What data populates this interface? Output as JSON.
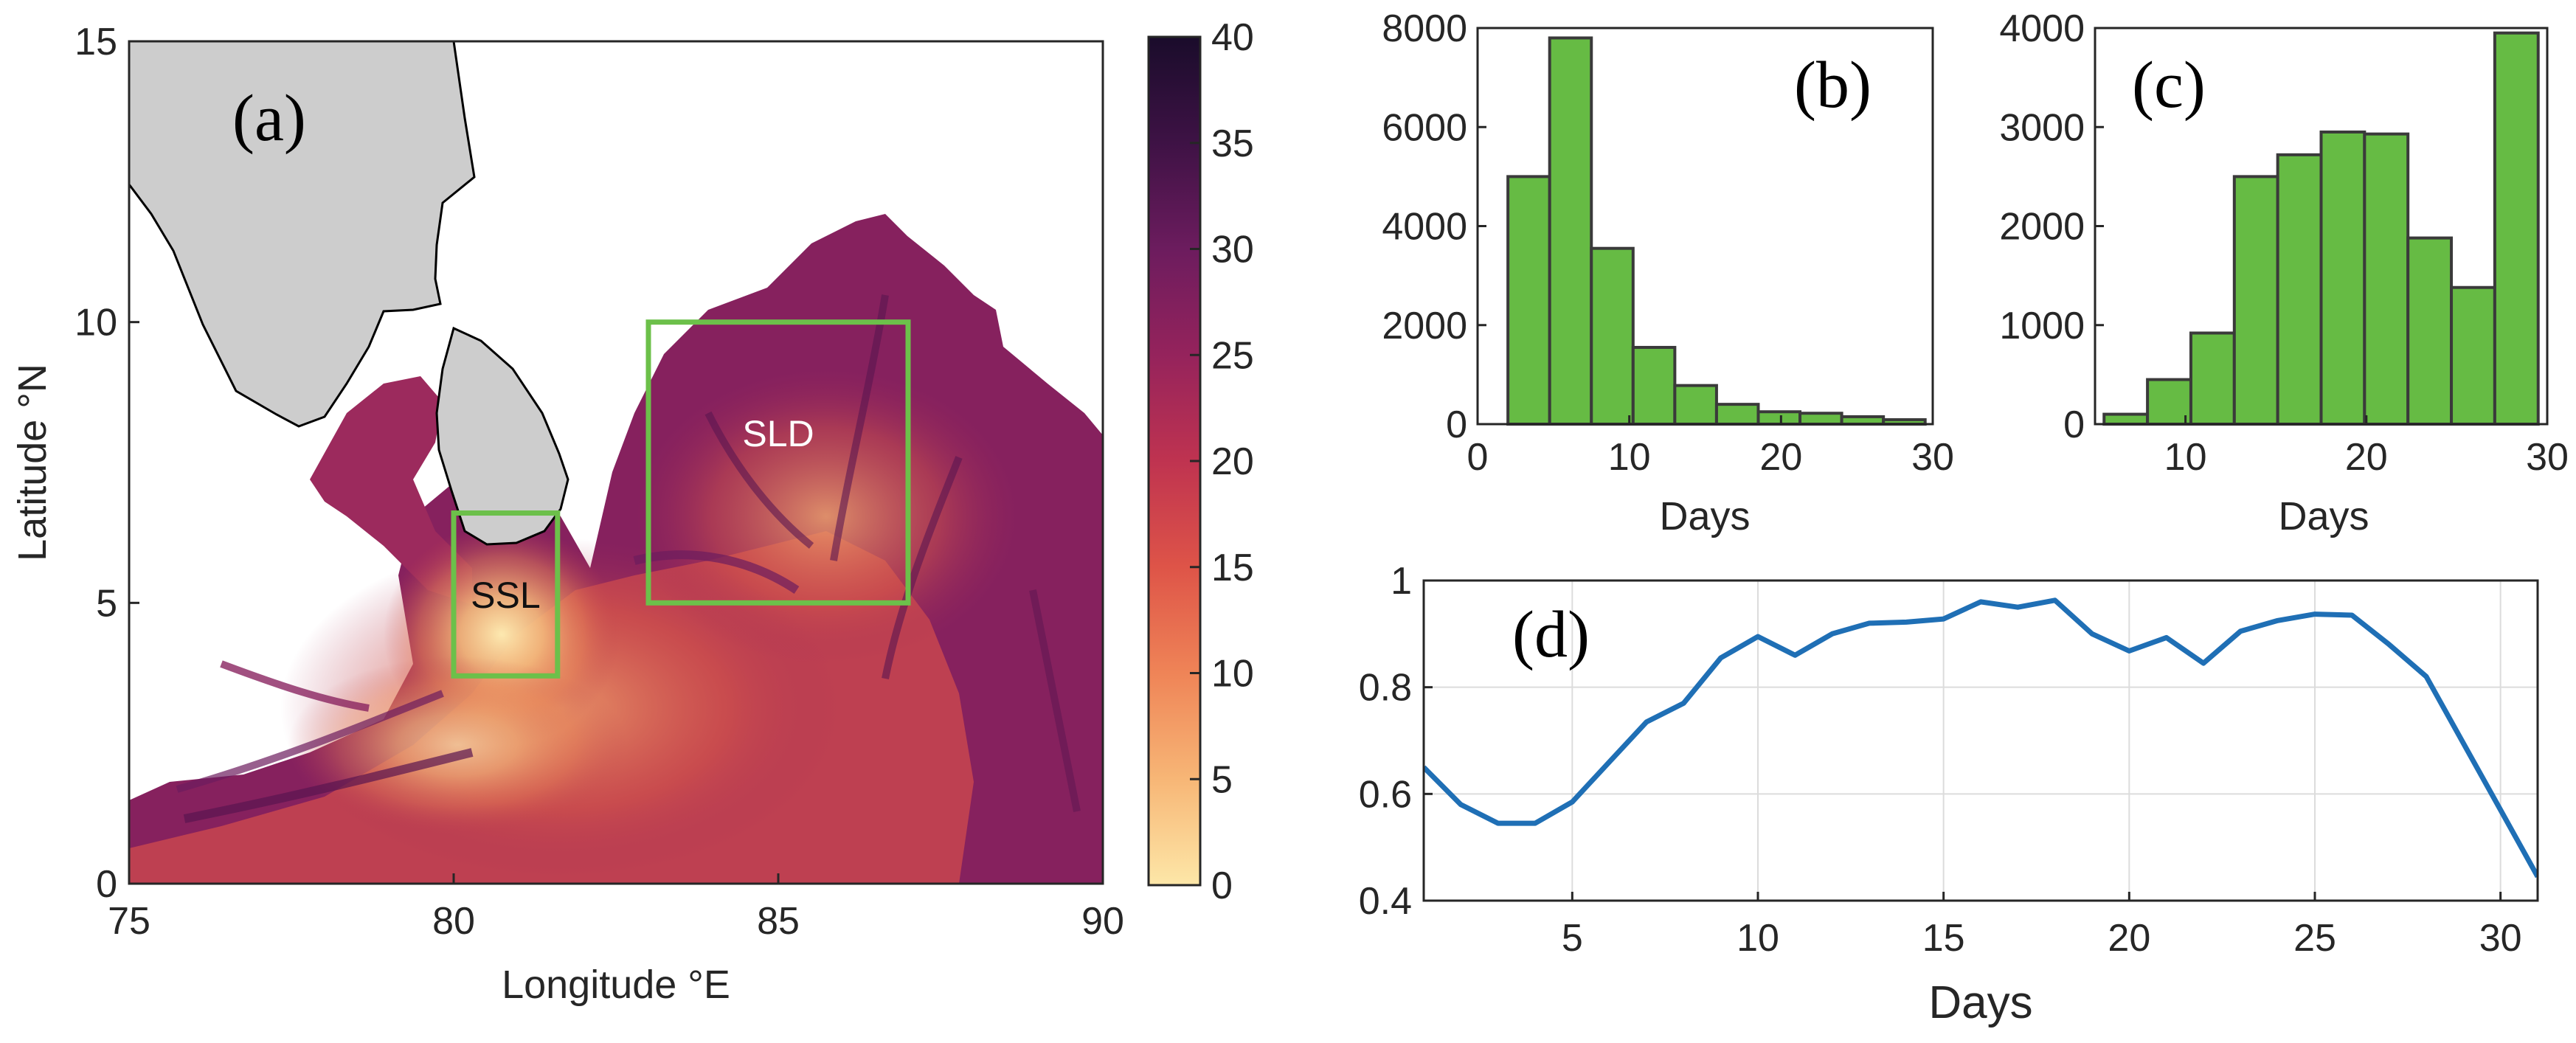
{
  "figure": {
    "panel_a_label": "(a)",
    "panel_b_label": "(b)",
    "panel_c_label": "(c)",
    "panel_d_label": "(d)"
  },
  "colors": {
    "bar_fill": "#66bb44",
    "line": "#1f6fb5",
    "box": "#6cc04a",
    "land": "#cdcdcd"
  },
  "chart_data": [
    {
      "id": "a",
      "type": "heatmap",
      "title": "",
      "xlabel": "Longitude °E",
      "ylabel": "Latitude °N",
      "xlim": [
        75,
        90
      ],
      "ylim": [
        0,
        15
      ],
      "xticks": [
        75,
        80,
        85,
        90
      ],
      "yticks": [
        0,
        5,
        10,
        15
      ],
      "colorbar": {
        "range": [
          0,
          40
        ],
        "ticks": [
          0,
          5,
          10,
          15,
          20,
          25,
          30,
          35,
          40
        ],
        "colormap": [
          "#fde7a8",
          "#f7b676",
          "#ef8457",
          "#de5448",
          "#bf3350",
          "#95235c",
          "#6c1c5e",
          "#3e1245",
          "#1a0c2b"
        ]
      },
      "regions": [
        {
          "name": "SSL",
          "lon": [
            80,
            81.6
          ],
          "lat": [
            3.7,
            6.6
          ]
        },
        {
          "name": "SLD",
          "lon": [
            83,
            87
          ],
          "lat": [
            5,
            10
          ]
        }
      ]
    },
    {
      "id": "b",
      "type": "bar",
      "title": "",
      "xlabel": "Days",
      "ylabel": "",
      "xlim": [
        0,
        30
      ],
      "ylim": [
        0,
        8000
      ],
      "xticks": [
        0,
        10,
        20,
        30
      ],
      "yticks": [
        0,
        2000,
        4000,
        6000,
        8000
      ],
      "bin_edges": [
        2,
        4.75,
        7.5,
        10.25,
        13,
        15.75,
        18.5,
        21.25,
        24,
        26.75,
        29.5
      ],
      "values": [
        5000,
        7800,
        3550,
        1550,
        780,
        400,
        250,
        220,
        150,
        90
      ]
    },
    {
      "id": "c",
      "type": "bar",
      "title": "",
      "xlabel": "Days",
      "ylabel": "",
      "xlim": [
        5,
        30
      ],
      "ylim": [
        0,
        4000
      ],
      "xticks": [
        10,
        20,
        30
      ],
      "yticks": [
        0,
        1000,
        2000,
        3000,
        4000
      ],
      "bin_edges": [
        5.5,
        7.9,
        10.3,
        12.7,
        15.1,
        17.5,
        19.9,
        22.3,
        24.7,
        27.1,
        29.5
      ],
      "values": [
        100,
        450,
        920,
        2500,
        2720,
        2950,
        2930,
        1880,
        1380,
        3950
      ]
    },
    {
      "id": "d",
      "type": "line",
      "title": "",
      "xlabel": "Days",
      "ylabel": "",
      "xlim": [
        1,
        31
      ],
      "ylim": [
        0.4,
        1
      ],
      "xticks": [
        5,
        10,
        15,
        20,
        25,
        30
      ],
      "yticks": [
        0.4,
        0.6,
        0.8,
        1
      ],
      "grid": true,
      "x": [
        1,
        2,
        3,
        4,
        5,
        6,
        7,
        8,
        9,
        10,
        11,
        12,
        13,
        14,
        15,
        16,
        17,
        18,
        19,
        20,
        21,
        22,
        23,
        24,
        25,
        26,
        27,
        28,
        29,
        30,
        31
      ],
      "values": [
        0.65,
        0.58,
        0.545,
        0.545,
        0.585,
        0.66,
        0.735,
        0.77,
        0.855,
        0.895,
        0.86,
        0.9,
        0.92,
        0.922,
        0.928,
        0.96,
        0.95,
        0.963,
        0.9,
        0.868,
        0.893,
        0.845,
        0.905,
        0.925,
        0.937,
        0.935,
        0.88,
        0.82,
        0.695,
        0.57,
        0.445
      ]
    }
  ]
}
